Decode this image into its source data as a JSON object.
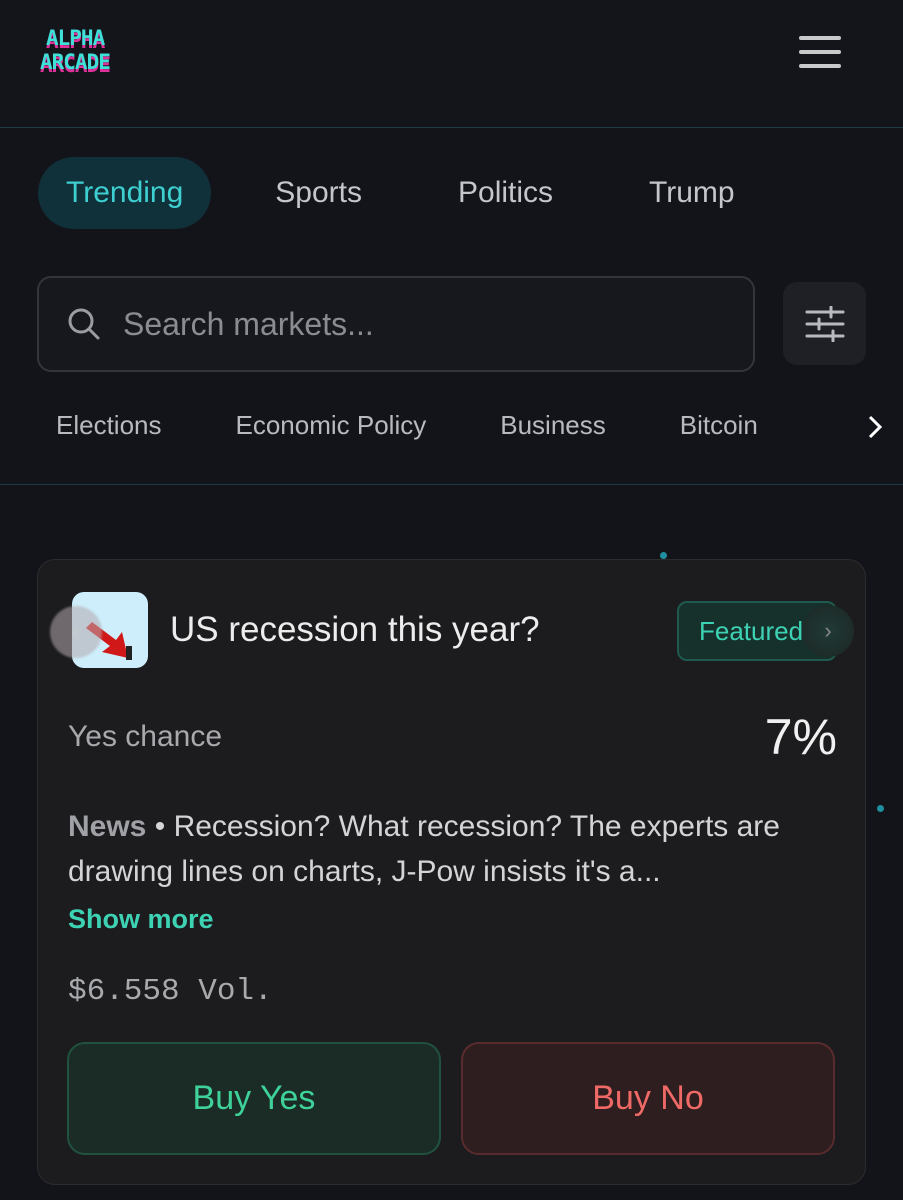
{
  "header": {
    "logo_line1": "ALPHA",
    "logo_line2": "ARCADE",
    "menu_icon": "hamburger-icon"
  },
  "tabs": [
    {
      "label": "Trending",
      "active": true
    },
    {
      "label": "Sports"
    },
    {
      "label": "Politics"
    },
    {
      "label": "Trump"
    }
  ],
  "search": {
    "placeholder": "Search markets...",
    "value": ""
  },
  "categories": [
    "Elections",
    "Economic Policy",
    "Business",
    "Bitcoin"
  ],
  "market": {
    "title": "US recession this year?",
    "badge": "Featured",
    "chance_label": "Yes chance",
    "chance": "7%",
    "news_label": "News",
    "news_sep": " • ",
    "news_text": "Recession? What recession? The experts are drawing lines on charts, J-Pow insists it's a...",
    "show_more": "Show more",
    "volume": "$6.558 Vol.",
    "buy_yes": "Buy Yes",
    "buy_no": "Buy No"
  },
  "colors": {
    "accent": "#3ed2b4",
    "yes": "#3ed29a",
    "no": "#ef6a66",
    "background": "#131419",
    "card": "#1c1c1e"
  }
}
